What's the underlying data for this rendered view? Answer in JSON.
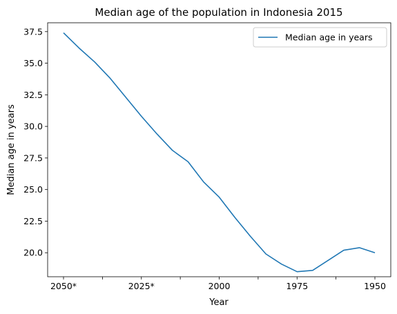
{
  "chart_data": {
    "type": "line",
    "title": "Median age of the population in Indonesia 2015",
    "xlabel": "Year",
    "ylabel": "Median age in years",
    "x_tick_labels": [
      "2050*",
      "",
      "2025*",
      "",
      "2000",
      "",
      "1975",
      "",
      "1950"
    ],
    "y_ticks": [
      "20.0",
      "22.5",
      "25.0",
      "27.5",
      "30.0",
      "32.5",
      "35.0",
      "37.5"
    ],
    "y_tick_values": [
      20.0,
      22.5,
      25.0,
      27.5,
      30.0,
      32.5,
      35.0,
      37.5
    ],
    "ylim": [
      18.1,
      38.2
    ],
    "x": [
      "2050*",
      "2045*",
      "2040*",
      "2035*",
      "2030*",
      "2025*",
      "2020*",
      "2015",
      "2010",
      "2005",
      "2000",
      "1995",
      "1990",
      "1985",
      "1980",
      "1975",
      "1970",
      "1965",
      "1960",
      "1955",
      "1950"
    ],
    "series": [
      {
        "name": "Median age in years",
        "color": "#1f77b4",
        "values": [
          37.4,
          36.2,
          35.1,
          33.8,
          32.3,
          30.8,
          29.4,
          28.1,
          27.2,
          25.6,
          24.4,
          22.8,
          21.3,
          19.9,
          19.1,
          18.5,
          18.6,
          19.4,
          20.2,
          20.4,
          20.0
        ]
      }
    ],
    "legend": {
      "position": "top-right",
      "entries": [
        "Median age in years"
      ]
    },
    "grid": false
  }
}
